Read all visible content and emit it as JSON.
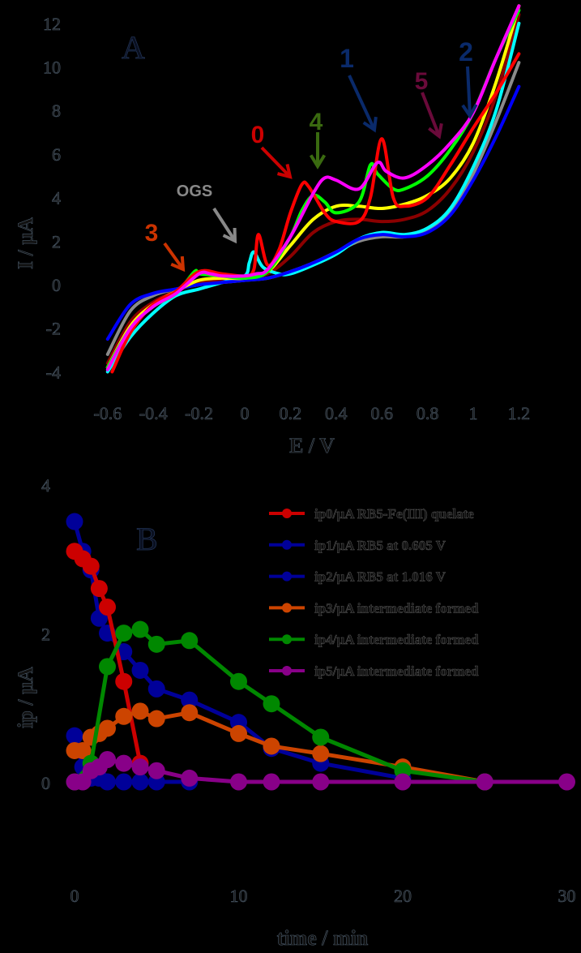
{
  "chart_data": [
    {
      "type": "line",
      "panel_label": "A",
      "title": "",
      "xlabel": "E / V",
      "ylabel": "I / µA",
      "xlim": [
        -0.65,
        1.25
      ],
      "ylim": [
        -4,
        12.5
      ],
      "xticks": [
        "-0.6",
        "-0.4",
        "-0.2",
        "0",
        "0.2",
        "0.4",
        "0.6",
        "0.8",
        "1",
        "1.2"
      ],
      "yticks": [
        "12",
        "10",
        "8",
        "6",
        "4",
        "2",
        "0",
        "-2",
        "-4"
      ],
      "grid": false,
      "annotations": [
        {
          "text": "0",
          "color": "#cc0000",
          "x": 0.25,
          "y": 4.5
        },
        {
          "text": "1",
          "color": "#0a2a6a",
          "x": 0.58,
          "y": 6.6
        },
        {
          "text": "2",
          "color": "#0a2a6a",
          "x": 0.99,
          "y": 7.8
        },
        {
          "text": "3",
          "color": "#cc3300",
          "x": -0.27,
          "y": 0.7
        },
        {
          "text": "4",
          "color": "#3a6a10",
          "x": 0.35,
          "y": 5.5
        },
        {
          "text": "5",
          "color": "#6a0a3a",
          "x": 0.82,
          "y": 6.8
        },
        {
          "text": "OGS",
          "color": "#888888",
          "x": 0.03,
          "y": 1.8
        }
      ],
      "series": [
        {
          "name": "0",
          "color": "#ff0000",
          "x": [
            -0.58,
            -0.5,
            -0.4,
            -0.3,
            -0.2,
            -0.1,
            0.0,
            0.04,
            0.06,
            0.1,
            0.15,
            0.2,
            0.25,
            0.28,
            0.35,
            0.4,
            0.5,
            0.55,
            0.6,
            0.65,
            0.7,
            0.8,
            0.9,
            1.0,
            1.1,
            1.2
          ],
          "y": [
            -4,
            -2.2,
            -0.9,
            -0.3,
            0.6,
            0.5,
            0.4,
            0.7,
            2.3,
            0.9,
            1.6,
            3.3,
            4.6,
            4.5,
            3.3,
            2.9,
            2.9,
            4.0,
            6.7,
            4.0,
            3.6,
            4.0,
            5.5,
            7.2,
            8.8,
            10.6
          ]
        },
        {
          "name": "1",
          "color": "#ff00ff",
          "x": [
            -0.6,
            -0.5,
            -0.4,
            -0.3,
            -0.2,
            -0.15,
            -0.1,
            0.0,
            0.05,
            0.1,
            0.2,
            0.3,
            0.35,
            0.4,
            0.5,
            0.58,
            0.62,
            0.7,
            0.8,
            0.9,
            1.0,
            1.1,
            1.2
          ],
          "y": [
            -3.9,
            -2.0,
            -1.0,
            -0.4,
            0.5,
            0.5,
            0.4,
            0.4,
            0.5,
            0.7,
            2.2,
            4.2,
            4.9,
            4.8,
            4.4,
            5.6,
            5.2,
            4.9,
            5.5,
            6.5,
            7.9,
            10.4,
            12.8
          ]
        },
        {
          "name": "2",
          "color": "#0000ff",
          "x": [
            -0.6,
            -0.5,
            -0.4,
            -0.3,
            -0.2,
            -0.1,
            0.0,
            0.1,
            0.2,
            0.3,
            0.4,
            0.5,
            0.6,
            0.7,
            0.8,
            0.9,
            1.0,
            1.1,
            1.2
          ],
          "y": [
            -2.5,
            -0.9,
            -0.4,
            -0.2,
            0.0,
            0.1,
            0.2,
            0.3,
            0.6,
            1.0,
            1.5,
            2.1,
            2.3,
            2.2,
            2.4,
            3.2,
            4.8,
            6.8,
            9.1
          ]
        },
        {
          "name": "3",
          "color": "#00ffff",
          "x": [
            -0.6,
            -0.5,
            -0.4,
            -0.3,
            -0.2,
            -0.1,
            0.0,
            0.02,
            0.04,
            0.08,
            0.15,
            0.2,
            0.3,
            0.4,
            0.5,
            0.6,
            0.7,
            0.8,
            0.9,
            1.0,
            1.1,
            1.2
          ],
          "y": [
            -4,
            -2.4,
            -1.3,
            -0.5,
            -0.2,
            0.1,
            0.4,
            1.0,
            1.5,
            0.8,
            0.5,
            0.5,
            0.9,
            1.4,
            2.1,
            2.4,
            2.3,
            2.6,
            3.5,
            5.4,
            8.0,
            12.0
          ]
        },
        {
          "name": "4",
          "color": "#00ff00",
          "x": [
            -0.6,
            -0.5,
            -0.4,
            -0.3,
            -0.22,
            -0.2,
            -0.1,
            0.0,
            0.1,
            0.2,
            0.25,
            0.3,
            0.35,
            0.4,
            0.5,
            0.55,
            0.58,
            0.65,
            0.7,
            0.8,
            0.9,
            1.0,
            1.1,
            1.2
          ],
          "y": [
            -3.8,
            -2.0,
            -1.0,
            -0.4,
            0.6,
            0.5,
            0.4,
            0.3,
            0.6,
            2.2,
            3.4,
            4.1,
            3.8,
            3.3,
            3.8,
            5.5,
            5.1,
            4.4,
            4.4,
            5.0,
            6.2,
            7.9,
            10.4,
            12.6
          ]
        },
        {
          "name": "5",
          "color": "#8b0000",
          "x": [
            -0.6,
            -0.5,
            -0.4,
            -0.3,
            -0.2,
            -0.1,
            0.0,
            0.1,
            0.2,
            0.3,
            0.4,
            0.5,
            0.6,
            0.7,
            0.8,
            0.9,
            1.0,
            1.1,
            1.2
          ],
          "y": [
            -3.6,
            -1.7,
            -0.8,
            -0.3,
            0.1,
            0.2,
            0.3,
            0.5,
            1.3,
            2.4,
            2.9,
            3.0,
            2.9,
            3.0,
            3.4,
            4.4,
            6.1,
            8.7,
            12.4
          ]
        },
        {
          "name": "OGS",
          "color": "#8a8a8a",
          "x": [
            -0.6,
            -0.5,
            -0.4,
            -0.3,
            -0.2,
            -0.1,
            0.0,
            0.1,
            0.2,
            0.3,
            0.4,
            0.5,
            0.6,
            0.7,
            0.8,
            0.9,
            1.0,
            1.1,
            1.2
          ],
          "y": [
            -3.2,
            -1.2,
            -0.5,
            -0.2,
            0.0,
            0.1,
            0.2,
            0.3,
            0.6,
            1.0,
            1.5,
            2.0,
            2.2,
            2.2,
            2.5,
            3.4,
            5.1,
            7.5,
            10.2
          ]
        },
        {
          "name": "yellow",
          "color": "#ffff00",
          "x": [
            -0.6,
            -0.5,
            -0.4,
            -0.3,
            -0.2,
            -0.1,
            0.0,
            0.1,
            0.2,
            0.3,
            0.4,
            0.5,
            0.6,
            0.7,
            0.8,
            0.9,
            1.0,
            1.1,
            1.2
          ],
          "y": [
            -3.8,
            -1.9,
            -0.9,
            -0.3,
            0.2,
            0.3,
            0.3,
            0.6,
            1.8,
            3.0,
            3.6,
            3.6,
            3.5,
            3.7,
            4.1,
            4.9,
            6.5,
            9.3,
            12.8
          ]
        }
      ]
    },
    {
      "type": "line",
      "panel_label": "B",
      "title": "",
      "xlabel": "time / min",
      "ylabel": "ip / µA",
      "xlim": [
        0,
        30
      ],
      "ylim": [
        0,
        4
      ],
      "xticks": [
        "0",
        "10",
        "20",
        "30"
      ],
      "yticks": [
        "4",
        "2",
        "0"
      ],
      "grid": false,
      "legend_position": "upper right",
      "series": [
        {
          "name": "ip0/µA RB5-Fe(III) quelate",
          "color": "#cc0000",
          "x": [
            0,
            0.5,
            1,
            1.5,
            2,
            3,
            4
          ],
          "y": [
            3.1,
            3.0,
            2.9,
            2.6,
            2.35,
            1.35,
            0.25
          ]
        },
        {
          "name": "ip1/µA RB5 at 0.605 V",
          "color": "#000099",
          "x": [
            0,
            0.5,
            1,
            1.5,
            2,
            3,
            4,
            5,
            7,
            10,
            12,
            15,
            20
          ],
          "y": [
            3.5,
            3.1,
            2.85,
            2.2,
            2.0,
            1.75,
            1.5,
            1.25,
            1.1,
            0.8,
            0.45,
            0.25,
            0.05
          ]
        },
        {
          "name": "ip2/µA RB5 at 1.016 V",
          "color": "#000099",
          "x": [
            0,
            0.5,
            1,
            1.5,
            2,
            3,
            4,
            5,
            7
          ],
          "y": [
            0.62,
            0.2,
            0.05,
            0.05,
            0.0,
            0.0,
            0.0,
            0.0,
            0.0
          ]
        },
        {
          "name": "ip3/µA intermediate formed",
          "color": "#cc4400",
          "x": [
            0,
            0.5,
            1,
            1.5,
            2,
            3,
            4,
            5,
            7,
            10,
            12,
            15,
            20,
            25
          ],
          "y": [
            0.42,
            0.42,
            0.6,
            0.65,
            0.72,
            0.88,
            0.95,
            0.85,
            0.93,
            0.65,
            0.48,
            0.38,
            0.2,
            0.0
          ]
        },
        {
          "name": "ip4/µA intermediate formed",
          "color": "#008800",
          "x": [
            0,
            1,
            2,
            3,
            4,
            5,
            7,
            10,
            12,
            15,
            20,
            25
          ],
          "y": [
            0.0,
            0.25,
            1.55,
            2.0,
            2.05,
            1.85,
            1.9,
            1.35,
            1.05,
            0.6,
            0.15,
            0.0
          ]
        },
        {
          "name": "ip5/µA intermediate formed",
          "color": "#880088",
          "x": [
            0,
            0.5,
            1,
            1.5,
            2,
            3,
            4,
            5,
            7,
            10,
            12,
            15,
            20,
            25,
            30
          ],
          "y": [
            0.0,
            0.0,
            0.15,
            0.2,
            0.3,
            0.25,
            0.2,
            0.15,
            0.05,
            0.0,
            0.0,
            0.0,
            0.0,
            0.0,
            0.0
          ]
        }
      ]
    }
  ],
  "top": {
    "panel": "A",
    "ylabel": "I / µA",
    "xlabel": "E / V",
    "xticks": [
      "-0.6",
      "-0.4",
      "-0.2",
      "0",
      "0.2",
      "0.4",
      "0.6",
      "0.8",
      "1",
      "1.2"
    ],
    "yticks": [
      "12",
      "10",
      "8",
      "6",
      "4",
      "2",
      "0",
      "-2",
      "-4"
    ]
  },
  "bottom": {
    "panel": "B",
    "ylabel": "ip / µA",
    "xlabel": "time / min",
    "xticks": [
      "0",
      "10",
      "20",
      "30"
    ],
    "yticks": [
      "4",
      "2",
      "0"
    ],
    "legend": [
      "ip0/µA RB5-Fe(III) quelate",
      "ip1/µA RB5 at 0.605 V",
      "ip2/µA RB5 at 1.016 V",
      "ip3/µA intermediate formed",
      "ip4/µA intermediate formed",
      "ip5/µA intermediate formed"
    ]
  }
}
